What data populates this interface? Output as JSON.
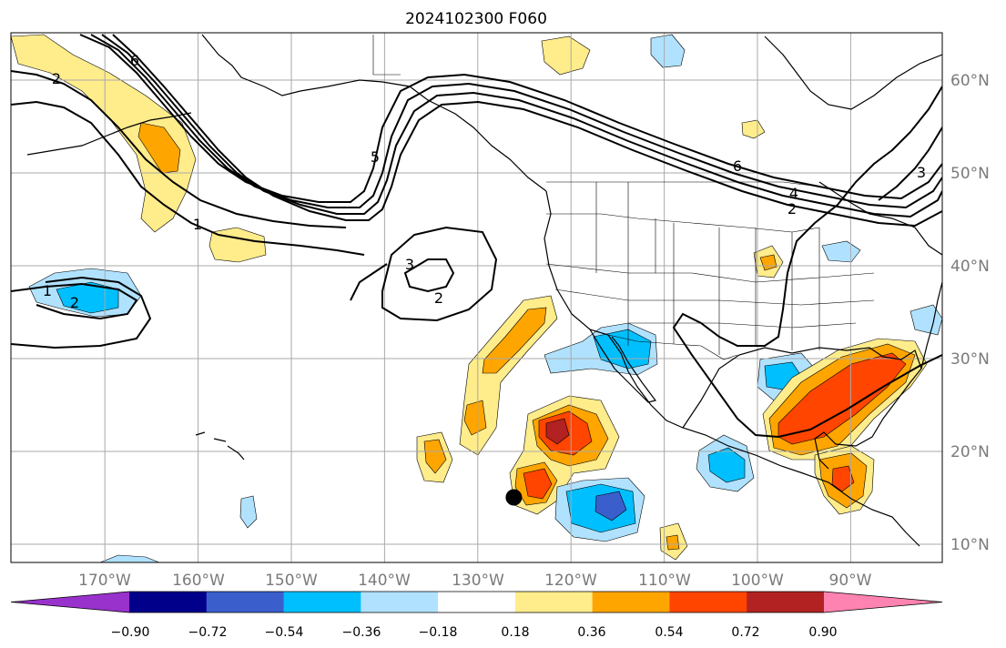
{
  "title": "2024102300 F060",
  "map": {
    "lon_range": [
      -180,
      -80
    ],
    "lat_range": [
      8,
      65
    ],
    "lon_labels": [
      "170°W",
      "160°W",
      "150°W",
      "140°W",
      "130°W",
      "120°W",
      "110°W",
      "100°W",
      "90°W"
    ],
    "lat_labels": [
      "10°N",
      "20°N",
      "30°N",
      "40°N",
      "50°N",
      "60°N"
    ],
    "marker": {
      "lon": -126,
      "lat": 15
    },
    "contour_labels": [
      "2",
      "6",
      "5",
      "1",
      "3",
      "2",
      "1",
      "2",
      "6",
      "4",
      "2",
      "3"
    ]
  },
  "colorbar": {
    "colors": [
      "#9932cc",
      "#00008b",
      "#3a5fcd",
      "#00bfff",
      "#b0e2ff",
      "#ffffff",
      "#ffec8b",
      "#ffa500",
      "#ff4500",
      "#b22222",
      "#ff83b0"
    ],
    "tick_labels": [
      "−0.90",
      "−0.72",
      "−0.54",
      "−0.36",
      "−0.18",
      "0.18",
      "0.36",
      "0.54",
      "0.72",
      "0.90"
    ]
  }
}
